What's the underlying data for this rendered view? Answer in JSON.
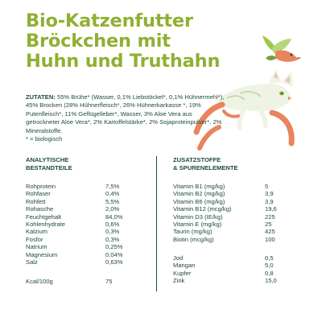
{
  "title": [
    "Bio-Katzenfutter",
    "Bröckchen mit",
    "Huhn und Truthahn"
  ],
  "ingredients": {
    "label": "ZUTATEN:",
    "text": "55% Brühe* (Wasser, 0,1% Liebstöckel*, 0,1% Hühnermehl*), 45% Brocken (28% Hühnerfleisch*, 26% Hühnerkarkasse *, 19% Putenfleisch*, 11% Geflügelleber*, Wasser, 3% Aloe Vera aus getrockneter Aloe Vera*, 2% Kartoffelstärke*, 2% Sojaproteinpulver*, 2% Mineralstoffe.",
    "note": "* = biologisch"
  },
  "analytical": {
    "heading": [
      "ANALYTISCHE",
      "BESTANDTEILE"
    ],
    "rows": [
      {
        "name": "Rohprotein",
        "value": "7,5%"
      },
      {
        "name": "Rohfaser",
        "value": "0,4%"
      },
      {
        "name": "Rohfett",
        "value": "5,5%"
      },
      {
        "name": "Rohasche",
        "value": "2,0%"
      },
      {
        "name": "Feuchtgehalt",
        "value": "84,0%"
      },
      {
        "name": "Kohlenhydrate",
        "value": "0,6%"
      },
      {
        "name": "Kalzium",
        "value": "0,3%"
      },
      {
        "name": "Fosfor",
        "value": "0,3%"
      },
      {
        "name": "Natrium",
        "value": "0,25%"
      },
      {
        "name": "Magnesium",
        "value": "0,04%"
      },
      {
        "name": "Salz",
        "value": "0,63%"
      }
    ],
    "kcal": {
      "name": "Kcal/100g",
      "value": "75"
    }
  },
  "additives": {
    "heading": [
      "ZUSATZSTOFFE",
      "& SPURENELEMENTE"
    ],
    "vitamins": [
      {
        "name": "Vitamin B1 (mg/kg)",
        "value": "5"
      },
      {
        "name": "Vitamin B2 (mg/kg)",
        "value": "3,9"
      },
      {
        "name": "Vitamin B6 (mg/kg)",
        "value": "3,9"
      },
      {
        "name": "Vitamin B12 (mcg/kg)",
        "value": "19,6"
      },
      {
        "name": "Vitamin D3 (IE/kg)",
        "value": "225"
      },
      {
        "name": "Vitamin E (mg/kg)",
        "value": "25"
      },
      {
        "name": "Taurin (mg/kg)",
        "value": "425"
      },
      {
        "name": "Biotin (mcg/kg)",
        "value": "100"
      }
    ],
    "minerals": [
      {
        "name": "Jod",
        "value": "0,5"
      },
      {
        "name": "Mangan",
        "value": "5,0"
      },
      {
        "name": "Kupfer",
        "value": "0,8"
      },
      {
        "name": "Zink",
        "value": "15,0"
      }
    ]
  }
}
